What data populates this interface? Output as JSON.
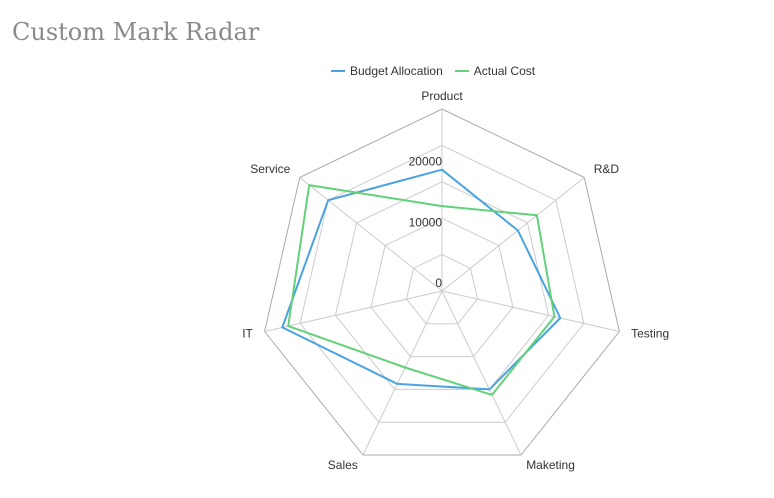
{
  "chart_data": {
    "type": "radar",
    "title": "Custom Mark Radar",
    "indicators": [
      "Product",
      "R&D",
      "Testing",
      "Maketing",
      "Sales",
      "IT",
      "Service"
    ],
    "max": 30000,
    "ticks": [
      "0",
      "10000",
      "20000"
    ],
    "series": [
      {
        "name": "Budget Allocation",
        "color": "#4aa3e0",
        "values": [
          20000,
          16000,
          20000,
          18000,
          17000,
          27000,
          24000
        ]
      },
      {
        "name": "Actual Cost",
        "color": "#63d17a",
        "values": [
          14000,
          20000,
          19000,
          19000,
          14000,
          26000,
          28000
        ]
      }
    ],
    "legend_position": "top-center",
    "grid": true
  }
}
